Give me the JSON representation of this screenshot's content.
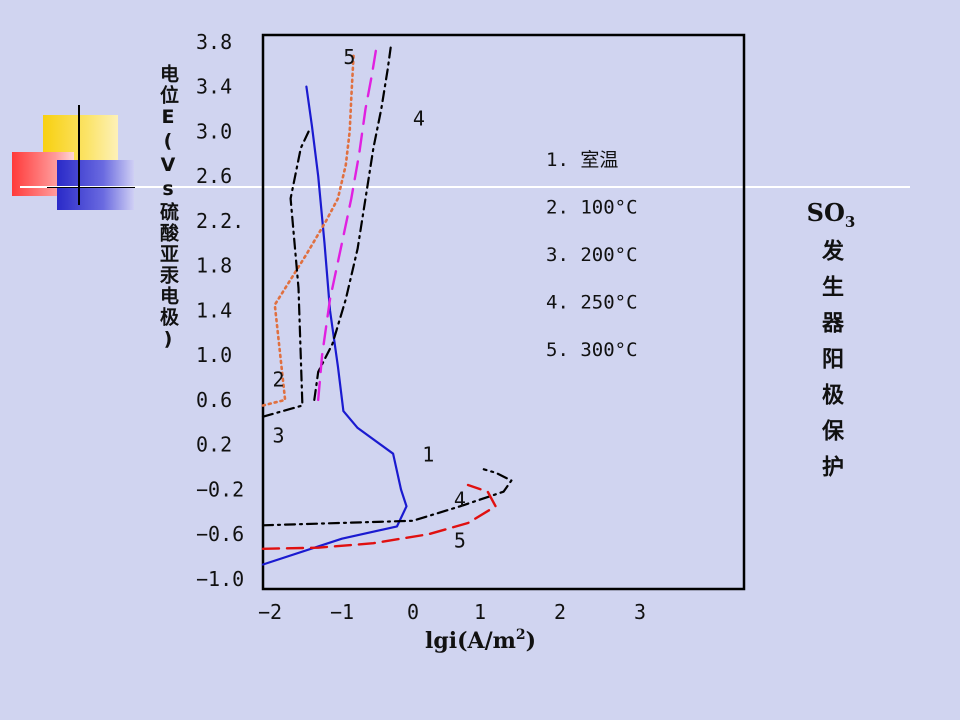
{
  "vertical_title": "电位E(Vs硫酸亚汞电极)",
  "side_title": {
    "so3_main": "SO",
    "so3_sub": "3",
    "rest": "发生器阳极保护"
  },
  "chart_data": {
    "type": "line",
    "xlabel": "lgi(A/m²)",
    "xlabel_main": "lgi(A/m",
    "xlabel_sup": "2",
    "xlabel_tail": ")",
    "ylabel": "电位E(Vs硫酸亚汞电极)",
    "xlim": [
      -2.0,
      4.1
    ],
    "ylim": [
      -1.0,
      3.95
    ],
    "x_ticks": [
      {
        "value": -2,
        "label": "−2"
      },
      {
        "value": -1,
        "label": "−1"
      },
      {
        "value": 0,
        "label": "0"
      },
      {
        "value": 1,
        "label": "1"
      },
      {
        "value": 2,
        "label": "2"
      },
      {
        "value": 3,
        "label": "3"
      }
    ],
    "y_ticks": [
      {
        "value": 3.8,
        "label": "3.8"
      },
      {
        "value": 3.4,
        "label": "3.4"
      },
      {
        "value": 3.0,
        "label": "3.0"
      },
      {
        "value": 2.6,
        "label": "2.6"
      },
      {
        "value": 2.2,
        "label": "2.2."
      },
      {
        "value": 1.8,
        "label": "1.8"
      },
      {
        "value": 1.4,
        "label": "1.4"
      },
      {
        "value": 1.0,
        "label": "1.0"
      },
      {
        "value": 0.6,
        "label": "0.6"
      },
      {
        "value": 0.2,
        "label": "0.2"
      },
      {
        "value": -0.2,
        "label": "−0.2"
      },
      {
        "value": -0.6,
        "label": "−0.6"
      },
      {
        "value": -1.0,
        "label": "−1.0"
      }
    ],
    "legend": [
      "1. 室温",
      "2. 100°C",
      "3. 200°C",
      "4. 250°C",
      "5. 300°C"
    ],
    "series": [
      {
        "name": "1",
        "color": "#1a1ad0",
        "dash": "none",
        "width": 2.2,
        "points": [
          [
            -2.0,
            -0.87
          ],
          [
            -1.0,
            -0.64
          ],
          [
            -0.3,
            -0.53
          ],
          [
            -0.18,
            -0.35
          ],
          [
            -0.25,
            -0.2
          ],
          [
            -0.35,
            0.12
          ],
          [
            -0.8,
            0.35
          ],
          [
            -0.98,
            0.5
          ],
          [
            -1.05,
            0.9
          ],
          [
            -1.15,
            1.4
          ],
          [
            -1.22,
            2.0
          ],
          [
            -1.3,
            2.6
          ],
          [
            -1.38,
            3.05
          ],
          [
            -1.45,
            3.4
          ]
        ]
      },
      {
        "name": "2",
        "color": "#e07040",
        "dash": "2 4",
        "width": 2.6,
        "points": [
          [
            -2.0,
            0.55
          ],
          [
            -1.72,
            0.6
          ],
          [
            -1.85,
            1.45
          ],
          [
            -1.45,
            1.9
          ],
          [
            -1.2,
            2.2
          ],
          [
            -1.05,
            2.4
          ],
          [
            -0.95,
            2.7
          ],
          [
            -0.9,
            3.0
          ],
          [
            -0.88,
            3.3
          ],
          [
            -0.85,
            3.7
          ]
        ]
      },
      {
        "name": "3",
        "color": "#000000",
        "dash": "10 5 2 5",
        "width": 2.2,
        "points": [
          [
            -2.0,
            0.45
          ],
          [
            -1.5,
            0.55
          ],
          [
            -1.55,
            1.6
          ],
          [
            -1.65,
            2.4
          ],
          [
            -1.52,
            2.85
          ],
          [
            -1.42,
            3.0
          ]
        ]
      },
      {
        "name": "4",
        "color": "#000000",
        "dash": "10 5 2 5",
        "width": 2.2,
        "points": [
          [
            -2.0,
            -0.52
          ],
          [
            -0.1,
            -0.48
          ],
          [
            0.5,
            -0.35
          ],
          [
            1.05,
            -0.22
          ],
          [
            1.15,
            -0.12
          ],
          [
            0.95,
            -0.05
          ],
          [
            0.8,
            -0.02
          ]
        ]
      },
      {
        "name": "4-upper",
        "color": "#000000",
        "dash": "10 5 2 5",
        "width": 2.2,
        "points": [
          [
            -1.35,
            0.6
          ],
          [
            -1.3,
            0.85
          ],
          [
            -1.12,
            1.1
          ],
          [
            -0.95,
            1.5
          ],
          [
            -0.8,
            1.95
          ],
          [
            -0.7,
            2.4
          ],
          [
            -0.6,
            2.85
          ],
          [
            -0.5,
            3.2
          ],
          [
            -0.42,
            3.55
          ],
          [
            -0.38,
            3.75
          ]
        ]
      },
      {
        "name": "5",
        "color": "#e01010",
        "dash": "16 8",
        "width": 2.4,
        "points": [
          [
            -2.0,
            -0.73
          ],
          [
            -1.3,
            -0.72
          ],
          [
            -0.6,
            -0.68
          ],
          [
            0.1,
            -0.6
          ],
          [
            0.6,
            -0.5
          ],
          [
            0.95,
            -0.35
          ],
          [
            0.85,
            -0.22
          ],
          [
            0.6,
            -0.16
          ]
        ]
      },
      {
        "name": "5-upper",
        "color": "#e020e0",
        "dash": "18 10",
        "width": 2.4,
        "points": [
          [
            -1.3,
            0.6
          ],
          [
            -1.25,
            1.0
          ],
          [
            -1.15,
            1.5
          ],
          [
            -1.0,
            2.0
          ],
          [
            -0.88,
            2.4
          ],
          [
            -0.78,
            2.8
          ],
          [
            -0.7,
            3.2
          ],
          [
            -0.62,
            3.5
          ],
          [
            -0.55,
            3.8
          ]
        ]
      }
    ],
    "curve_labels": [
      {
        "text": "5",
        "x": -0.98,
        "y": 3.6
      },
      {
        "text": "4",
        "x": -0.1,
        "y": 3.05
      },
      {
        "text": "2",
        "x": -1.88,
        "y": 0.72
      },
      {
        "text": "3",
        "x": -1.88,
        "y": 0.22
      },
      {
        "text": "1",
        "x": 0.02,
        "y": 0.05
      },
      {
        "text": "4",
        "x": 0.42,
        "y": -0.35
      },
      {
        "text": "5",
        "x": 0.42,
        "y": -0.72
      }
    ]
  }
}
